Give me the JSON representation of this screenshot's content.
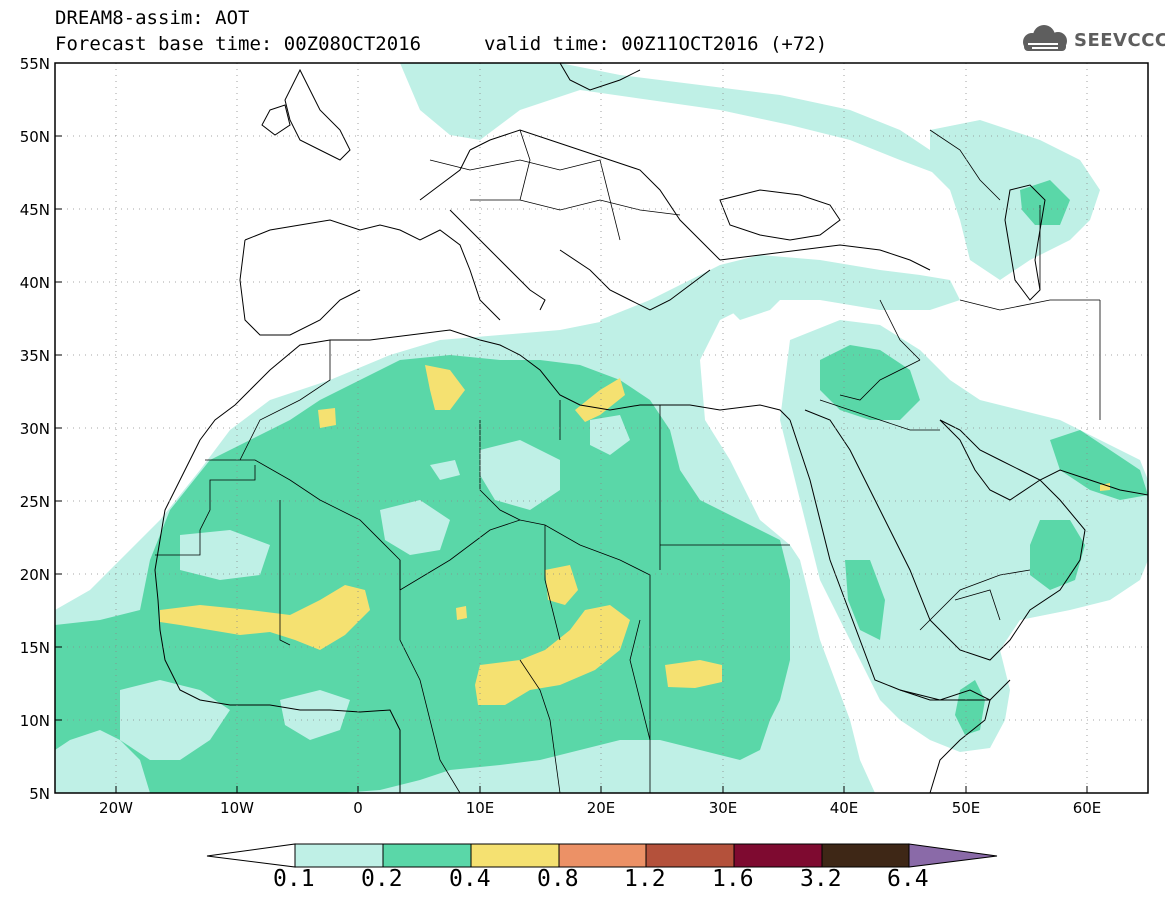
{
  "header": {
    "title": "DREAM8-assim: AOT",
    "base_time": "Forecast base time: 00Z08OCT2016",
    "valid_time": "valid time: 00Z11OCT2016 (+72)",
    "logo_text": "SEEVCCC"
  },
  "map": {
    "projection": "lat-lon",
    "lon_range": [
      -25,
      65
    ],
    "lat_range": [
      5,
      55
    ],
    "lat_ticks": [
      "55N",
      "50N",
      "45N",
      "40N",
      "35N",
      "30N",
      "25N",
      "20N",
      "15N",
      "10N",
      "5N"
    ],
    "lon_ticks": [
      "20W",
      "10W",
      "0",
      "10E",
      "20E",
      "30E",
      "40E",
      "50E",
      "60E"
    ],
    "coastline_color": "#000000",
    "border_color": "#000000"
  },
  "colorbar": {
    "labels": [
      "0.1",
      "0.2",
      "0.4",
      "0.8",
      "1.2",
      "1.6",
      "3.2",
      "6.4"
    ],
    "colors": [
      "#ffffff",
      "#bff0e6",
      "#5ad7a8",
      "#f5e171",
      "#ec9166",
      "#b4513b",
      "#7e0a30",
      "#3e2716",
      "#8a6aa8"
    ]
  }
}
